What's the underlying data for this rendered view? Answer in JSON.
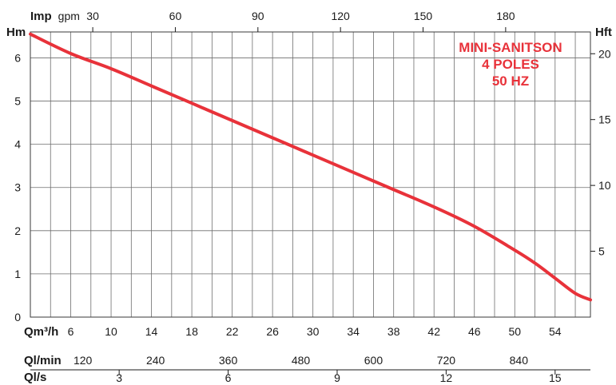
{
  "chart_data": {
    "type": "line",
    "title_lines": [
      "MINI-SANITSON",
      "4 POLES",
      "50 HZ"
    ],
    "colors": {
      "curve": "#e8323a",
      "title": "#e8323a",
      "grid": "#6e6e6e"
    },
    "grid": true,
    "x_axis": {
      "name": "Qm³/h",
      "range": [
        2,
        57.5
      ],
      "ticks": [
        6,
        10,
        14,
        18,
        22,
        26,
        30,
        34,
        38,
        42,
        46,
        50,
        54
      ]
    },
    "y_axis_left": {
      "name": "Hm",
      "range": [
        0,
        6.6
      ],
      "ticks": [
        0,
        1,
        2,
        3,
        4,
        5,
        6
      ]
    },
    "y_axis_right": {
      "name": "Hft",
      "ticks": [
        5,
        10,
        15,
        20
      ]
    },
    "top_axis": {
      "name": "Imp",
      "unit": "gpm",
      "ticks": [
        30,
        60,
        90,
        120,
        150,
        180
      ]
    },
    "bottom_axis_lmin": {
      "name": "Ql/min",
      "ticks": [
        120,
        240,
        360,
        480,
        600,
        720,
        840
      ]
    },
    "bottom_axis_ls": {
      "name": "Ql/s",
      "ticks": [
        3,
        6,
        9,
        12,
        15
      ]
    },
    "series": [
      {
        "x": [
          2,
          6,
          10,
          14,
          18,
          22,
          26,
          30,
          34,
          38,
          42,
          46,
          50,
          52,
          54,
          56,
          57.5
        ],
        "y": [
          6.55,
          6.1,
          5.75,
          5.35,
          4.95,
          4.55,
          4.15,
          3.75,
          3.35,
          2.95,
          2.55,
          2.1,
          1.55,
          1.25,
          0.9,
          0.55,
          0.4
        ]
      }
    ]
  }
}
